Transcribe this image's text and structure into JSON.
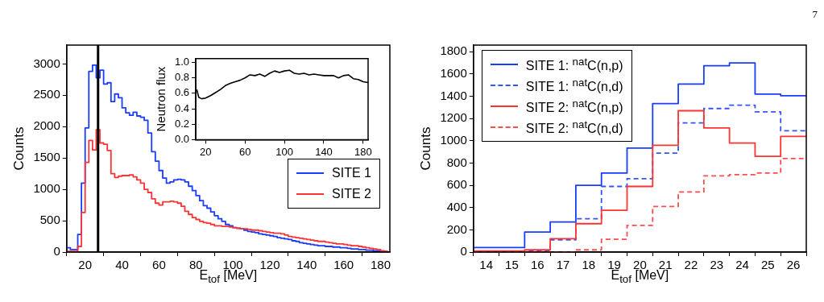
{
  "chart_data": [
    {
      "type": "histogram",
      "xlabel": "E$_{tof}$ [MeV]",
      "ylabel": "Counts",
      "xlim": [
        10,
        185
      ],
      "ylim": [
        0,
        3300
      ],
      "xticks": [
        20,
        40,
        60,
        80,
        100,
        120,
        140,
        160,
        180
      ],
      "yticks": [
        0,
        500,
        1000,
        1500,
        2000,
        2500,
        3000
      ],
      "grid": false,
      "legend": "right",
      "bins": [
        10,
        12,
        14,
        16,
        18,
        20,
        22,
        24,
        26,
        28,
        30,
        32,
        34,
        36,
        38,
        40,
        42,
        44,
        46,
        48,
        50,
        52,
        54,
        56,
        58,
        60,
        62,
        64,
        66,
        68,
        70,
        72,
        74,
        76,
        78,
        80,
        82,
        84,
        86,
        88,
        90,
        92,
        94,
        96,
        98,
        100,
        102,
        104,
        106,
        108,
        110,
        112,
        114,
        116,
        118,
        120,
        122,
        124,
        126,
        128,
        130,
        132,
        134,
        136,
        138,
        140,
        142,
        144,
        146,
        148,
        150,
        152,
        154,
        156,
        158,
        160,
        162,
        164,
        166,
        168,
        170,
        172,
        174,
        176,
        178,
        180,
        182,
        184
      ],
      "series": [
        {
          "name": "SITE 1",
          "color": "#1a3cff",
          "values": [
            70,
            40,
            40,
            280,
            1100,
            1980,
            2880,
            2980,
            2780,
            2900,
            2680,
            2700,
            2400,
            2520,
            2460,
            2300,
            2220,
            2180,
            2230,
            2170,
            2150,
            2100,
            1900,
            1600,
            1450,
            1300,
            1180,
            1100,
            1120,
            1150,
            1160,
            1150,
            1120,
            1050,
            980,
            900,
            820,
            740,
            700,
            640,
            580,
            530,
            490,
            440,
            420,
            390,
            380,
            370,
            350,
            330,
            320,
            310,
            290,
            280,
            270,
            260,
            250,
            230,
            220,
            210,
            200,
            180,
            170,
            150,
            140,
            130,
            120,
            110,
            100,
            100,
            90,
            90,
            80,
            80,
            70,
            70,
            60,
            50,
            50,
            40,
            40,
            30,
            30,
            20,
            20,
            10,
            10
          ]
        },
        {
          "name": "SITE 2",
          "color": "#ff3333",
          "values": [
            10,
            10,
            10,
            90,
            630,
            1430,
            1780,
            1630,
            1950,
            1740,
            1720,
            1620,
            1250,
            1190,
            1210,
            1220,
            1220,
            1230,
            1200,
            1150,
            1100,
            1000,
            950,
            850,
            780,
            750,
            800,
            800,
            810,
            800,
            780,
            730,
            650,
            600,
            550,
            520,
            490,
            470,
            460,
            440,
            420,
            420,
            410,
            410,
            400,
            390,
            380,
            370,
            370,
            360,
            350,
            350,
            340,
            330,
            320,
            310,
            300,
            300,
            290,
            270,
            250,
            240,
            230,
            220,
            210,
            200,
            190,
            180,
            170,
            170,
            160,
            150,
            140,
            130,
            130,
            120,
            110,
            100,
            100,
            90,
            80,
            70,
            60,
            50,
            40,
            20,
            10
          ]
        }
      ],
      "ref_lines": [
        {
          "axis": "x",
          "value": 27,
          "color": "#000000"
        }
      ]
    },
    {
      "type": "line",
      "ylabel": "Neutron flux",
      "xlim": [
        10,
        185
      ],
      "ylim": [
        0,
        1.05
      ],
      "xticks": [
        20,
        60,
        100,
        140,
        180
      ],
      "yticks": [
        {
          "value": 0,
          "label": "0.0"
        },
        {
          "value": 0.2,
          "label": "0.2"
        },
        {
          "value": 0.4,
          "label": "0.4"
        },
        {
          "value": 0.6,
          "label": "0.6"
        },
        {
          "value": 0.8,
          "label": "0.8"
        },
        {
          "value": 1,
          "label": "1.0"
        }
      ],
      "grid": false,
      "x": [
        11,
        13,
        16,
        20,
        25,
        30,
        35,
        40,
        45,
        50,
        55,
        60,
        65,
        70,
        75,
        80,
        85,
        90,
        95,
        100,
        105,
        110,
        115,
        120,
        125,
        130,
        135,
        140,
        145,
        150,
        155,
        160,
        165,
        170,
        175,
        180,
        185
      ],
      "series": [
        {
          "color": "#000000",
          "values": [
            0.65,
            0.55,
            0.53,
            0.54,
            0.57,
            0.61,
            0.65,
            0.7,
            0.73,
            0.75,
            0.77,
            0.8,
            0.84,
            0.83,
            0.85,
            0.82,
            0.86,
            0.89,
            0.87,
            0.89,
            0.9,
            0.86,
            0.85,
            0.86,
            0.84,
            0.85,
            0.84,
            0.83,
            0.83,
            0.83,
            0.8,
            0.83,
            0.84,
            0.79,
            0.78,
            0.75,
            0.74
          ]
        }
      ]
    },
    {
      "type": "histogram",
      "xlabel": "E$_{tof}$ [MeV]",
      "ylabel": "Counts",
      "xlim": [
        13.5,
        26.5
      ],
      "ylim": [
        0,
        1860
      ],
      "xticks": [
        14,
        15,
        16,
        17,
        18,
        19,
        20,
        21,
        22,
        23,
        24,
        25,
        26
      ],
      "yticks": [
        0,
        200,
        400,
        600,
        800,
        1000,
        1200,
        1400,
        1600,
        1800
      ],
      "grid": false,
      "legend": "top left",
      "annotations": [
        "7"
      ],
      "bins": [
        13.5,
        14.5,
        15.5,
        16.5,
        17.5,
        18.5,
        19.5,
        20.5,
        21.5,
        22.5,
        23.5,
        24.5,
        25.5,
        26.5
      ],
      "series": [
        {
          "name": "SITE 1: $^{nat}$C(n,p)",
          "color": "#1a3cff",
          "line_style": "solid",
          "values": [
            40,
            40,
            180,
            270,
            600,
            710,
            935,
            1335,
            1510,
            1675,
            1700,
            1420,
            1405
          ]
        },
        {
          "name": "SITE 1: $^{nat}$C(n,d)",
          "color": "#3355ff",
          "line_style": "dashed",
          "values": [
            0,
            0,
            10,
            110,
            300,
            590,
            660,
            890,
            1160,
            1290,
            1320,
            1260,
            1090
          ]
        },
        {
          "name": "SITE 2: $^{nat}$C(n,p)",
          "color": "#ff3333",
          "line_style": "solid",
          "values": [
            10,
            10,
            20,
            120,
            255,
            375,
            590,
            960,
            1270,
            1115,
            980,
            860,
            1040
          ]
        },
        {
          "name": "SITE 2: $^{nat}$C(n,d)",
          "color": "#ff4d4d",
          "line_style": "dashed",
          "values": [
            0,
            0,
            0,
            0,
            20,
            115,
            240,
            410,
            540,
            685,
            695,
            710,
            840
          ]
        }
      ]
    }
  ]
}
